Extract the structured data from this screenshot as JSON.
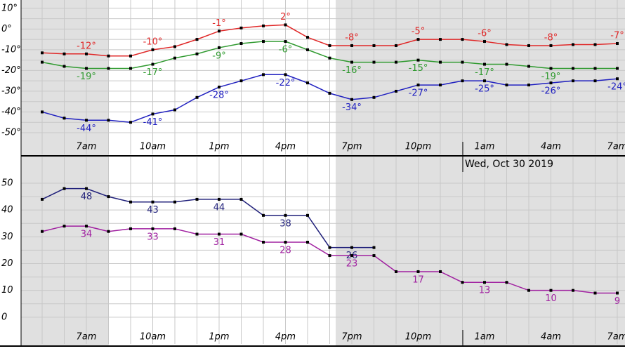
{
  "chart_data": [
    {
      "type": "line",
      "categories": [
        null,
        null,
        "7am",
        null,
        null,
        "10am",
        null,
        null,
        "1pm",
        null,
        null,
        "4pm",
        null,
        null,
        "7pm",
        null,
        null,
        "10pm",
        null,
        null,
        "1am",
        null,
        null,
        "4am",
        null,
        null,
        "7am"
      ],
      "annotation": "Wed, Oct 30 2019",
      "ylim": [
        -60.5,
        14
      ],
      "yticks": [
        {
          "value": 10,
          "label": "10°"
        },
        {
          "value": 0,
          "label": "0°"
        },
        {
          "value": -10,
          "label": "-10°"
        },
        {
          "value": -20,
          "label": "-20°"
        },
        {
          "value": -30,
          "label": "-30°"
        },
        {
          "value": -40,
          "label": "-40°"
        },
        {
          "value": -50,
          "label": "-50°"
        }
      ],
      "grid": true,
      "series": [
        {
          "color": "#e02828",
          "values": [
            -11.5,
            -12,
            -12,
            -13,
            -13,
            -10,
            -8.5,
            -5,
            -1,
            0.5,
            1.5,
            2,
            -4,
            -8,
            -8,
            -8,
            -8,
            -5,
            -5,
            -5,
            -6,
            -7.5,
            -8,
            -8,
            -7.5,
            -7.5,
            -7
          ],
          "value_labels": [
            null,
            null,
            "-12°",
            null,
            null,
            "-10°",
            null,
            null,
            "-1°",
            null,
            null,
            "2°",
            null,
            null,
            "-8°",
            null,
            null,
            "-5°",
            null,
            null,
            "-6°",
            null,
            null,
            "-8°",
            null,
            null,
            "-7°"
          ]
        },
        {
          "color": "#2f9a2f",
          "values": [
            -16,
            -18,
            -19,
            -19,
            -19,
            -17,
            -14,
            -12,
            -9,
            -7,
            -6,
            -6,
            -10,
            -14,
            -16,
            -16,
            -16,
            -15,
            -16,
            -16,
            -17,
            -17,
            -18,
            -19,
            -19,
            -19,
            -19
          ],
          "value_labels": [
            null,
            null,
            "-19°",
            null,
            null,
            "-17°",
            null,
            null,
            "-9°",
            null,
            null,
            "-6°",
            null,
            null,
            "-16°",
            null,
            null,
            "-15°",
            null,
            null,
            "-17°",
            null,
            null,
            "-19°",
            null,
            null,
            null
          ]
        },
        {
          "color": "#2020c0",
          "values": [
            -40,
            -43,
            -44,
            -44,
            -45,
            -41,
            -39,
            -33,
            -28,
            -25,
            -22,
            -22,
            -26,
            -31,
            -34,
            -33,
            -30,
            -27,
            -27,
            -25,
            -25,
            -27,
            -27,
            -26,
            -25,
            -25,
            -24
          ],
          "value_labels": [
            null,
            null,
            "-44°",
            null,
            null,
            "-41°",
            null,
            null,
            "-28°",
            null,
            null,
            "-22°",
            null,
            null,
            "-34°",
            null,
            null,
            "-27°",
            null,
            null,
            "-25°",
            null,
            null,
            "-26°",
            null,
            null,
            "-24°"
          ]
        }
      ]
    },
    {
      "type": "line",
      "categories": [
        null,
        null,
        "7am",
        null,
        null,
        "10am",
        null,
        null,
        "1pm",
        null,
        null,
        "4pm",
        null,
        null,
        "7pm",
        null,
        null,
        "10pm",
        null,
        null,
        "1am",
        null,
        null,
        "4am",
        null,
        null,
        "7am"
      ],
      "ylim": [
        -10,
        59.7
      ],
      "yticks": [
        50,
        40,
        30,
        20,
        10,
        0
      ],
      "grid": true,
      "series": [
        {
          "color": "#20207a",
          "values": [
            44,
            48,
            48,
            45,
            43,
            43,
            43,
            44,
            44,
            44,
            38,
            38,
            38,
            26,
            26,
            26,
            null,
            null,
            null,
            null,
            null,
            null,
            null,
            null,
            null,
            null,
            null
          ],
          "value_labels": [
            null,
            null,
            "48",
            null,
            null,
            "43",
            null,
            null,
            "44",
            null,
            null,
            "38",
            null,
            null,
            "26",
            null,
            null,
            null,
            null,
            null,
            null,
            null,
            null,
            null,
            null,
            null,
            null
          ]
        },
        {
          "color": "#a020a0",
          "values": [
            32,
            34,
            34,
            32,
            33,
            33,
            33,
            31,
            31,
            31,
            28,
            28,
            28,
            23,
            23,
            23,
            17,
            17,
            17,
            13,
            13,
            13,
            10,
            10,
            10,
            9,
            9
          ],
          "value_labels": [
            null,
            null,
            "34",
            null,
            null,
            "33",
            null,
            null,
            "31",
            null,
            null,
            "28",
            null,
            null,
            "23",
            null,
            null,
            "17",
            null,
            null,
            "13",
            null,
            null,
            "10",
            null,
            null,
            "9"
          ]
        }
      ]
    }
  ]
}
